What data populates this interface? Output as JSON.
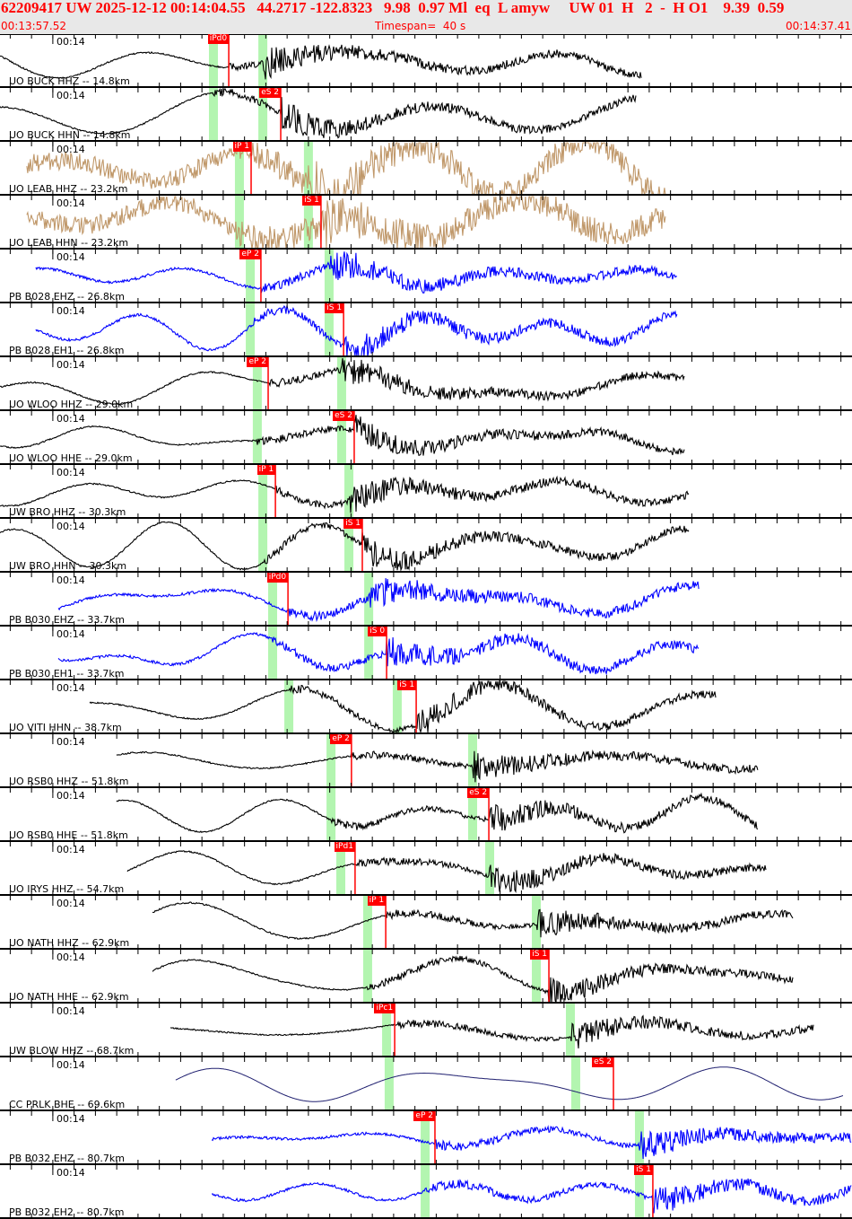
{
  "header": {
    "event_line": "62209417 UW 2025-12-12 00:14:04.55   44.2717 -122.8323   9.98  0.97 Ml  eq  L amyw     UW 01  H   2  -  H O1    9.39  0.59",
    "start_time": "00:13:57.52",
    "timespan": "Timespan=  40 s",
    "end_time": "00:14:37.41"
  },
  "colors": {
    "pick": "#ff0000",
    "theoretical": "#b3f5b0",
    "tan": "#c0986a",
    "blue": "#0000ff",
    "navy": "#202070",
    "black": "#000000",
    "header_bg": "#e8e8e8"
  },
  "chart_data": {
    "type": "line",
    "xlabel": "",
    "ylabel": "",
    "x_range": [
      "00:13:57.52",
      "00:14:37.41"
    ],
    "tick_label": "00:14",
    "tick_interval_s": 1,
    "traces": [
      {
        "label": "UO BUCK HHZ -- 14.8km",
        "color": "black",
        "start": "00:13:57.52",
        "end": "00:14:27.63",
        "pick": {
          "label": "iPd0",
          "time": "00:14:08.26",
          "phase": "P"
        },
        "theo_p": "00:14:07.54",
        "theo_s": "00:14:09.86"
      },
      {
        "label": "UO BUCK HHN -- 14.8km",
        "color": "black",
        "start": "00:13:57.52",
        "end": "00:14:27.41",
        "pick": {
          "label": "eS 2",
          "time": "00:14:10.70",
          "phase": "S"
        },
        "theo_p": "00:14:07.54",
        "theo_s": "00:14:09.86"
      },
      {
        "label": "UO LEAB HHZ -- 23.2km",
        "color": "tan",
        "start": "00:13:58.78",
        "end": "00:14:28.80",
        "pick": {
          "label": "iP 1",
          "time": "00:14:09.31",
          "phase": "P"
        },
        "theo_p": "00:14:08.76",
        "theo_s": "00:14:12.00"
      },
      {
        "label": "UO LEAB HHN -- 23.2km",
        "color": "tan",
        "start": "00:13:58.78",
        "end": "00:14:28.80",
        "pick": {
          "label": "iS 1",
          "time": "00:14:12.59",
          "phase": "S"
        },
        "theo_p": "00:14:08.76",
        "theo_s": "00:14:12.00"
      },
      {
        "label": "PB B028 EHZ -- 26.8km",
        "color": "blue",
        "start": "00:13:59.20",
        "end": "00:14:29.31",
        "pick": {
          "label": "eP 2",
          "time": "00:14:09.77",
          "phase": "P"
        },
        "theo_p": "00:14:09.27",
        "theo_s": "00:14:12.97"
      },
      {
        "label": "PB B028 EH1 -- 26.8km",
        "color": "blue",
        "start": "00:13:59.20",
        "end": "00:14:29.31",
        "pick": {
          "label": "iS 1",
          "time": "00:14:13.65",
          "phase": "S"
        },
        "theo_p": "00:14:09.27",
        "theo_s": "00:14:12.97"
      },
      {
        "label": "UO WLOO HHZ -- 29.0km",
        "color": "black",
        "start": "00:13:57.52",
        "end": "00:14:29.65",
        "pick": {
          "label": "eP 2",
          "time": "00:14:10.11",
          "phase": "P"
        },
        "theo_p": "00:14:09.60",
        "theo_s": "00:14:13.56"
      },
      {
        "label": "UO WLOO HHE -- 29.0km",
        "color": "black",
        "start": "00:13:57.52",
        "end": "00:14:29.65",
        "pick": {
          "label": "eS 2",
          "time": "00:14:14.15",
          "phase": "S"
        },
        "theo_p": "00:14:09.60",
        "theo_s": "00:14:13.56"
      },
      {
        "label": "UW BRO HHZ -- 30.3km",
        "color": "black",
        "start": "00:13:57.52",
        "end": "00:14:29.86",
        "pick": {
          "label": "iP 1",
          "time": "00:14:10.45",
          "phase": "P"
        },
        "theo_p": "00:14:09.86",
        "theo_s": "00:14:13.90"
      },
      {
        "label": "UW BRO HHN -- 30.3km",
        "color": "black",
        "start": "00:13:57.52",
        "end": "00:14:29.86",
        "pick": {
          "label": "iS 1",
          "time": "00:14:14.53",
          "phase": "S"
        },
        "theo_p": "00:14:09.86",
        "theo_s": "00:14:13.90"
      },
      {
        "label": "PB B030 EHZ -- 33.7km",
        "color": "blue",
        "start": "00:14:00.26",
        "end": "00:14:30.36",
        "pick": {
          "label": "iPd0",
          "time": "00:14:11.04",
          "phase": "P"
        },
        "theo_p": "00:14:10.32",
        "theo_s": "00:14:14.83"
      },
      {
        "label": "PB B030 EH1 -- 33.7km",
        "color": "blue",
        "start": "00:14:00.26",
        "end": "00:14:30.36",
        "pick": {
          "label": "iS 0",
          "time": "00:14:15.67",
          "phase": "S"
        },
        "theo_p": "00:14:10.32",
        "theo_s": "00:14:14.83"
      },
      {
        "label": "UO VITI HHN -- 38.7km",
        "color": "black",
        "start": "00:14:01.73",
        "end": "00:14:31.12",
        "pick": {
          "label": "iS 1",
          "time": "00:14:17.06",
          "phase": "S"
        },
        "theo_p": "00:14:11.08",
        "theo_s": "00:14:16.17"
      },
      {
        "label": "UO RSB0 HHZ -- 51.8km",
        "color": "black",
        "start": "00:14:02.99",
        "end": "00:14:33.10",
        "pick": {
          "label": "eP 2",
          "time": "00:14:14.02",
          "phase": "P"
        },
        "theo_p": "00:14:13.06",
        "theo_s": "00:14:19.71"
      },
      {
        "label": "UO RSB0 HHE -- 51.8km",
        "color": "black",
        "start": "00:14:02.99",
        "end": "00:14:33.10",
        "pick": {
          "label": "eS 2",
          "time": "00:14:20.47",
          "phase": "S"
        },
        "theo_p": "00:14:13.06",
        "theo_s": "00:14:19.71"
      },
      {
        "label": "UO IRYS HHZ -- 54.7km",
        "color": "black",
        "start": "00:14:03.50",
        "end": "00:14:33.52",
        "pick": {
          "label": "iPd1",
          "time": "00:14:14.19",
          "phase": "P"
        },
        "theo_p": "00:14:13.52",
        "theo_s": "00:14:20.51"
      },
      {
        "label": "UO NATH HHZ -- 62.9km",
        "color": "black",
        "start": "00:14:04.68",
        "end": "00:14:34.78",
        "pick": {
          "label": "iP 1",
          "time": "00:14:15.63",
          "phase": "P"
        },
        "theo_p": "00:14:14.78",
        "theo_s": "00:14:22.70"
      },
      {
        "label": "UO NATH HHE -- 62.9km",
        "color": "black",
        "start": "00:14:04.68",
        "end": "00:14:34.78",
        "pick": {
          "label": "iS 1",
          "time": "00:14:23.29",
          "phase": "S"
        },
        "theo_p": "00:14:14.78",
        "theo_s": "00:14:22.70"
      },
      {
        "label": "UW BLOW HHZ -- 68.7km",
        "color": "black",
        "start": "00:14:05.52",
        "end": "00:14:35.71",
        "pick": {
          "label": "iPc1",
          "time": "00:14:16.05",
          "phase": "P"
        },
        "theo_p": "00:14:15.67",
        "theo_s": "00:14:24.30"
      },
      {
        "label": "CC PRLK BHE -- 69.6km",
        "color": "navy",
        "start": "00:14:05.77",
        "end": "00:14:37.10",
        "pick": {
          "label": "eS 2",
          "time": "00:14:26.32",
          "phase": "S"
        },
        "theo_p": "00:14:15.79",
        "theo_s": "00:14:24.55"
      },
      {
        "label": "PB B032 EHZ -- 80.7km",
        "color": "blue",
        "start": "00:14:07.46",
        "end": "00:14:37.52",
        "pick": {
          "label": "eP 2",
          "time": "00:14:17.94",
          "phase": "P"
        },
        "theo_p": "00:14:17.48",
        "theo_s": "00:14:27.54"
      },
      {
        "label": "PB B032 EH2 -- 80.7km",
        "color": "blue",
        "start": "00:14:07.46",
        "end": "00:14:37.52",
        "pick": {
          "label": "iS 1",
          "time": "00:14:28.17",
          "phase": "S"
        },
        "theo_p": "00:14:17.48",
        "theo_s": "00:14:27.54"
      }
    ]
  }
}
